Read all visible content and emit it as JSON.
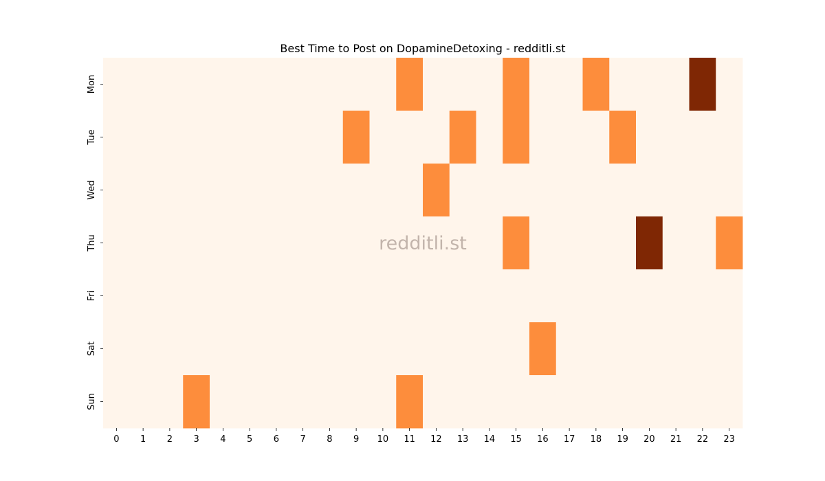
{
  "chart_data": {
    "type": "heatmap",
    "title": "Best Time to Post on DopamineDetoxing - redditli.st",
    "watermark": "redditli.st",
    "xlabel": "",
    "ylabel": "",
    "x_categories": [
      "0",
      "1",
      "2",
      "3",
      "4",
      "5",
      "6",
      "7",
      "8",
      "9",
      "10",
      "11",
      "12",
      "13",
      "14",
      "15",
      "16",
      "17",
      "18",
      "19",
      "20",
      "21",
      "22",
      "23"
    ],
    "y_categories": [
      "Mon",
      "Tue",
      "Wed",
      "Thu",
      "Fri",
      "Sat",
      "Sun"
    ],
    "values": [
      [
        0,
        0,
        0,
        0,
        0,
        0,
        0,
        0,
        0,
        0,
        0,
        1,
        0,
        0,
        0,
        1,
        0,
        0,
        1,
        0,
        0,
        0,
        2,
        0
      ],
      [
        0,
        0,
        0,
        0,
        0,
        0,
        0,
        0,
        0,
        1,
        0,
        0,
        0,
        1,
        0,
        1,
        0,
        0,
        0,
        1,
        0,
        0,
        0,
        0
      ],
      [
        0,
        0,
        0,
        0,
        0,
        0,
        0,
        0,
        0,
        0,
        0,
        0,
        1,
        0,
        0,
        0,
        0,
        0,
        0,
        0,
        0,
        0,
        0,
        0
      ],
      [
        0,
        0,
        0,
        0,
        0,
        0,
        0,
        0,
        0,
        0,
        0,
        0,
        0,
        0,
        0,
        1,
        0,
        0,
        0,
        0,
        2,
        0,
        0,
        1
      ],
      [
        0,
        0,
        0,
        0,
        0,
        0,
        0,
        0,
        0,
        0,
        0,
        0,
        0,
        0,
        0,
        0,
        0,
        0,
        0,
        0,
        0,
        0,
        0,
        0
      ],
      [
        0,
        0,
        0,
        0,
        0,
        0,
        0,
        0,
        0,
        0,
        0,
        0,
        0,
        0,
        0,
        0,
        1,
        0,
        0,
        0,
        0,
        0,
        0,
        0
      ],
      [
        0,
        0,
        0,
        1,
        0,
        0,
        0,
        0,
        0,
        0,
        0,
        1,
        0,
        0,
        0,
        0,
        0,
        0,
        0,
        0,
        0,
        0,
        0,
        0
      ]
    ],
    "colormap": {
      "0": "#fff5eb",
      "1": "#fd8d3c",
      "2": "#7f2704"
    },
    "grid": false,
    "legend": "none"
  }
}
